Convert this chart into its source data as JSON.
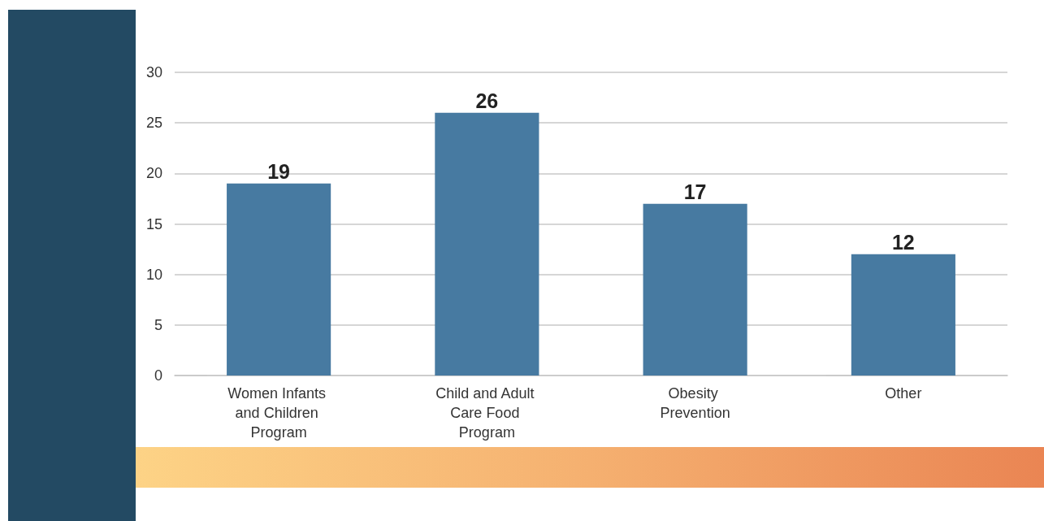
{
  "chart_data": {
    "type": "bar",
    "categories": [
      "Women Infants and Children Program",
      "Child and Adult Care Food Program",
      "Obesity Prevention",
      "Other"
    ],
    "values": [
      19,
      26,
      17,
      12
    ],
    "color": "#477aa1",
    "ylim": [
      0,
      30
    ],
    "yticks": [
      0,
      5,
      10,
      15,
      20,
      25,
      30
    ],
    "grid": "y",
    "data_labels": true
  }
}
